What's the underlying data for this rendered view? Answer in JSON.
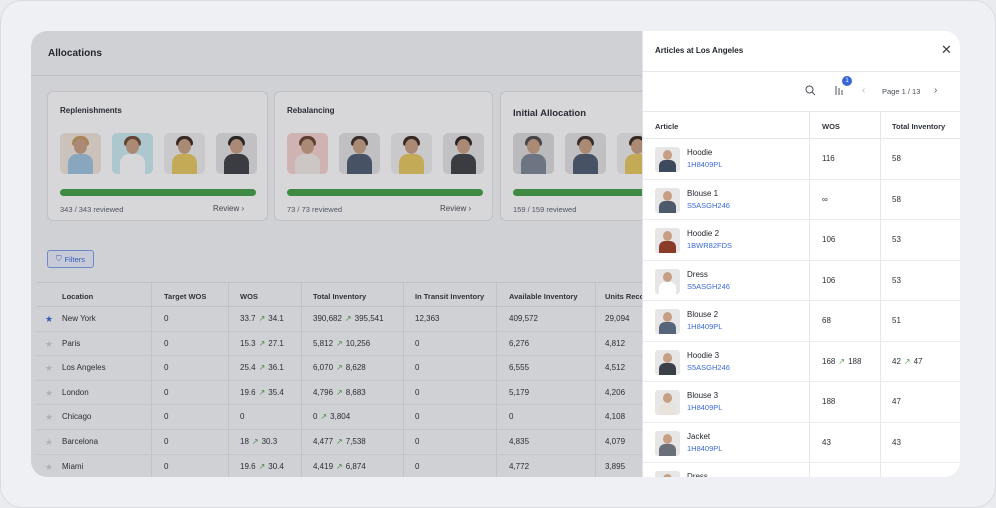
{
  "main": {
    "title": "Allocations",
    "cards": [
      {
        "title": "Replenishments",
        "footer": "343 / 343 reviewed",
        "link": "Review",
        "progress": 1.0
      },
      {
        "title": "Rebalancing",
        "footer": "73 / 73 reviewed",
        "link": "Review",
        "progress": 1.0
      },
      {
        "title": "Initial Allocation",
        "footer": "159 / 159 reviewed",
        "progress": 1.0
      }
    ],
    "filters_label": "Filters",
    "table": {
      "columns": [
        "Location",
        "Target WOS",
        "WOS",
        "Total Inventory",
        "In Transit Inventory",
        "Available Inventory",
        "Units Reco"
      ],
      "rows": [
        {
          "location": "New York",
          "favorite": true,
          "target": "0",
          "wos_from": "33.7",
          "wos_to": "34.1",
          "inv_from": "390,682",
          "inv_to": "395,541",
          "transit": "12,363",
          "available": "409,572",
          "units": "29,094"
        },
        {
          "location": "Paris",
          "favorite": false,
          "target": "0",
          "wos_from": "15.3",
          "wos_to": "27.1",
          "inv_from": "5,812",
          "inv_to": "10,256",
          "transit": "0",
          "available": "6,276",
          "units": "4,812"
        },
        {
          "location": "Los Angeles",
          "favorite": false,
          "target": "0",
          "wos_from": "25.4",
          "wos_to": "36.1",
          "inv_from": "6,070",
          "inv_to": "8,628",
          "transit": "0",
          "available": "6,555",
          "units": "4,512"
        },
        {
          "location": "London",
          "favorite": false,
          "target": "0",
          "wos_from": "19.6",
          "wos_to": "35.4",
          "inv_from": "4,796",
          "inv_to": "8,683",
          "transit": "0",
          "available": "5,179",
          "units": "4,206"
        },
        {
          "location": "Chicago",
          "favorite": false,
          "target": "0",
          "wos_from": "0",
          "wos_to": "",
          "inv_from": "0",
          "inv_to": "3,804",
          "transit": "0",
          "available": "0",
          "units": "4,108"
        },
        {
          "location": "Barcelona",
          "favorite": false,
          "target": "0",
          "wos_from": "18",
          "wos_to": "30.3",
          "inv_from": "4,477",
          "inv_to": "7,538",
          "transit": "0",
          "available": "4,835",
          "units": "4,079"
        },
        {
          "location": "Miami",
          "favorite": false,
          "target": "0",
          "wos_from": "19.6",
          "wos_to": "30.4",
          "inv_from": "4,419",
          "inv_to": "6,874",
          "transit": "0",
          "available": "4,772",
          "units": "3,895"
        }
      ]
    }
  },
  "panel": {
    "title": "Articles at Los Angeles",
    "filter_badge": "1",
    "pager": "Page 1 / 13",
    "columns": [
      "Article",
      "WOS",
      "Total Inventory"
    ],
    "articles": [
      {
        "name": "Hoodie",
        "code": "1H8409PL",
        "wos": "116",
        "wos_to": "",
        "inv": "58",
        "inv_to": "",
        "tone": "#3d4a5e"
      },
      {
        "name": "Blouse 1",
        "code": "S5ASGH246",
        "wos": "∞",
        "wos_to": "",
        "inv": "58",
        "inv_to": "",
        "tone": "#4d5a6b"
      },
      {
        "name": "Hoodie 2",
        "code": "1BWR82FDS",
        "wos": "106",
        "wos_to": "",
        "inv": "53",
        "inv_to": "",
        "tone": "#8a3b2a"
      },
      {
        "name": "Dress",
        "code": "S5ASGH246",
        "wos": "106",
        "wos_to": "",
        "inv": "53",
        "inv_to": "",
        "tone": "#ffffff"
      },
      {
        "name": "Blouse 2",
        "code": "1H8409PL",
        "wos": "68",
        "wos_to": "",
        "inv": "51",
        "inv_to": "",
        "tone": "#56657a"
      },
      {
        "name": "Hoodie 3",
        "code": "S5ASGH246",
        "wos": "168",
        "wos_to": "188",
        "inv": "42",
        "inv_to": "47",
        "tone": "#3a3f48"
      },
      {
        "name": "Blouse 3",
        "code": "1H8409PL",
        "wos": "188",
        "wos_to": "",
        "inv": "47",
        "inv_to": "",
        "tone": "#e8e2dd"
      },
      {
        "name": "Jacket",
        "code": "1H8409PL",
        "wos": "43",
        "wos_to": "",
        "inv": "43",
        "inv_to": "",
        "tone": "#6a6f78"
      },
      {
        "name": "Dress",
        "code": "",
        "wos": "",
        "wos_to": "",
        "inv": "",
        "inv_to": "",
        "tone": "#9aa0aa"
      }
    ]
  },
  "icons": {
    "close": "close-icon",
    "search": "search-icon",
    "filter": "filter-icon",
    "star": "star-icon",
    "trend": "trend-up-icon",
    "chevron_left": "chevron-left-icon",
    "chevron_right": "chevron-right-icon"
  },
  "colors": {
    "accent": "#3867d6",
    "progress": "#43a047",
    "trend": "#43a047"
  }
}
